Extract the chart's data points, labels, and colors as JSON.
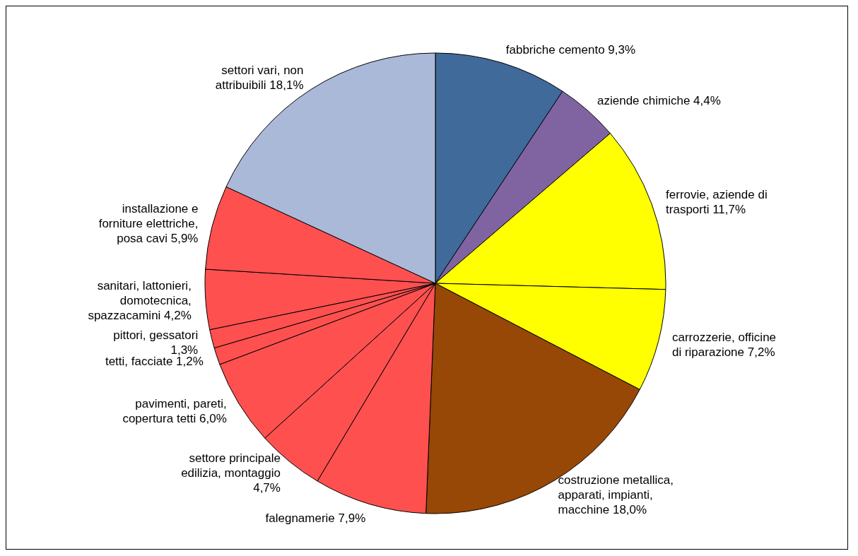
{
  "chart_data": {
    "type": "pie",
    "categories": [
      "fabbriche cemento",
      "aziende chimiche",
      "ferrovie, aziende di trasporti",
      "carrozzerie, officine di riparazione",
      "costruzione metallica, apparati, impianti, macchine",
      "falegnamerie",
      "settore principale edilizia, montaggio",
      "pavimenti, pareti, copertura tetti",
      "tetti, facciate",
      "pittori, gessatori",
      "sanitari, lattonieri, domotecnica, spazzacamini",
      "installazione e forniture elettriche, posa cavi",
      "settori vari, non attribuibili"
    ],
    "values": [
      9.3,
      4.4,
      11.7,
      7.2,
      18.0,
      7.9,
      4.7,
      6.0,
      1.2,
      1.3,
      4.2,
      5.9,
      18.1
    ],
    "value_labels": [
      "9,3%",
      "4,4%",
      "11,7%",
      "7,2%",
      "18,0%",
      "7,9%",
      "4,7%",
      "6,0%",
      "1,2%",
      "1,3%",
      "4,2%",
      "5,9%",
      "18,1%"
    ],
    "colors": [
      "#3f6a9a",
      "#8064a2",
      "#ffff00",
      "#ffff00",
      "#974706",
      "#ff5050",
      "#ff5050",
      "#ff5050",
      "#ff5050",
      "#ff5050",
      "#ff5050",
      "#ff5050",
      "#aab9d8"
    ]
  }
}
